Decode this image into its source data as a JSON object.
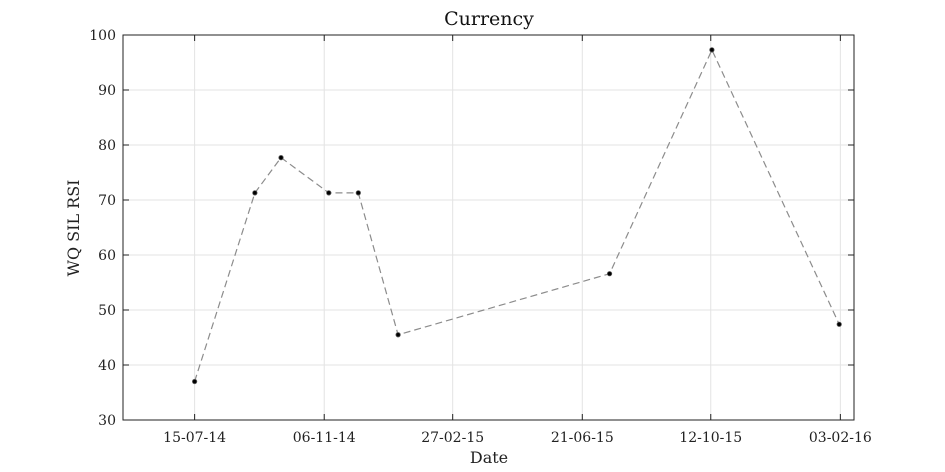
{
  "chart_data": {
    "type": "line",
    "title": "Currency",
    "xlabel": "Date",
    "ylabel": "WQ SIL RSI",
    "x_ticks": [
      "2014-07-15",
      "2014-11-06",
      "2015-02-27",
      "2015-06-21",
      "2015-10-12",
      "2016-02-03"
    ],
    "x_tick_labels": [
      "15-07-14",
      "06-11-14",
      "27-02-15",
      "21-06-15",
      "12-10-15",
      "03-02-16"
    ],
    "xlim": [
      "2014-05-13",
      "2016-02-15"
    ],
    "ylim": [
      30,
      100
    ],
    "y_ticks": [
      30,
      40,
      50,
      60,
      70,
      80,
      90,
      100
    ],
    "grid": true,
    "series": [
      {
        "x": [
          "2014-07-15",
          "2014-09-06",
          "2014-09-29",
          "2014-11-10",
          "2014-12-06",
          "2015-01-10",
          "2015-07-15",
          "2015-10-13",
          "2016-02-02"
        ],
        "y": [
          37,
          71.3,
          77.7,
          71.3,
          71.3,
          45.5,
          56.6,
          97.3,
          47.4
        ]
      }
    ]
  }
}
